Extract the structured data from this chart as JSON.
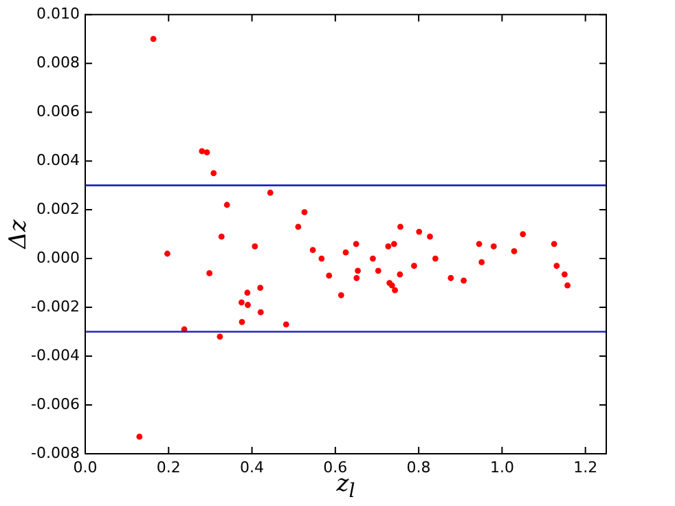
{
  "chart_data": {
    "type": "scatter",
    "xlabel": "z$_{l}$",
    "ylabel": "Δz",
    "xlim": [
      0,
      1.25
    ],
    "ylim": [
      -0.008,
      0.01
    ],
    "xticks": [
      {
        "value": 0,
        "label": "0.0"
      },
      {
        "value": 0.2,
        "label": "0.2"
      },
      {
        "value": 0.4,
        "label": "0.4"
      },
      {
        "value": 0.6,
        "label": "0.6"
      },
      {
        "value": 0.8,
        "label": "0.8"
      },
      {
        "value": 1.0,
        "label": "1.0"
      },
      {
        "value": 1.2,
        "label": "1.2"
      }
    ],
    "yticks": [
      {
        "value": -0.008,
        "label": "-0.008"
      },
      {
        "value": -0.006,
        "label": "-0.006"
      },
      {
        "value": -0.004,
        "label": "-0.004"
      },
      {
        "value": -0.002,
        "label": "-0.002"
      },
      {
        "value": 0,
        "label": "0.000"
      },
      {
        "value": 0.002,
        "label": "0.002"
      },
      {
        "value": 0.004,
        "label": "0.004"
      },
      {
        "value": 0.006,
        "label": "0.006"
      },
      {
        "value": 0.008,
        "label": "0.008"
      },
      {
        "value": 0.01,
        "label": "0.010"
      }
    ],
    "grid": false,
    "legend": false,
    "marker": "circle",
    "ref_lines": [
      {
        "axis": "y",
        "value": 0.003,
        "color": "#2222cc"
      },
      {
        "axis": "y",
        "value": -0.003,
        "color": "#2222cc"
      }
    ],
    "series": [
      {
        "color": "#ff0000",
        "x": [
          0.13,
          0.1635,
          0.197,
          0.2376,
          0.28,
          0.292,
          0.298,
          0.308,
          0.323,
          0.327,
          0.34,
          0.375,
          0.376,
          0.389,
          0.39,
          0.407,
          0.42,
          0.421,
          0.444,
          0.482,
          0.511,
          0.526,
          0.546,
          0.567,
          0.585,
          0.614,
          0.625,
          0.65,
          0.651,
          0.654,
          0.69,
          0.703,
          0.727,
          0.73,
          0.736,
          0.741,
          0.743,
          0.755,
          0.756,
          0.789,
          0.801,
          0.827,
          0.84,
          0.877,
          0.908,
          0.945,
          0.951,
          0.98,
          1.029,
          1.05,
          1.125,
          1.131,
          1.134,
          1.15,
          1.157
        ],
        "values": [
          -0.0073,
          0.009,
          0.0002,
          -0.0029,
          0.0044,
          0.00435,
          -0.0006,
          0.0035,
          -0.0032,
          0.0009,
          0.0022,
          -0.0018,
          -0.0026,
          -0.0014,
          -0.0019,
          0.0005,
          -0.0012,
          -0.0022,
          0.0027,
          -0.0027,
          0.0013,
          0.0019,
          0.00035,
          0.0,
          -0.0007,
          -0.0015,
          0.00025,
          0.0006,
          -0.0008,
          -0.0005,
          0.0,
          -0.0005,
          0.0005,
          -0.001,
          -0.0011,
          0.0006,
          -0.0013,
          -0.00065,
          0.0013,
          -0.0003,
          0.0011,
          0.0009,
          0.0,
          -0.0008,
          -0.0009,
          0.0006,
          -0.00015,
          0.0005,
          0.0003,
          0.001,
          0.0006,
          -0.0003,
          null,
          -0.00065,
          -0.0011
        ]
      }
    ]
  }
}
